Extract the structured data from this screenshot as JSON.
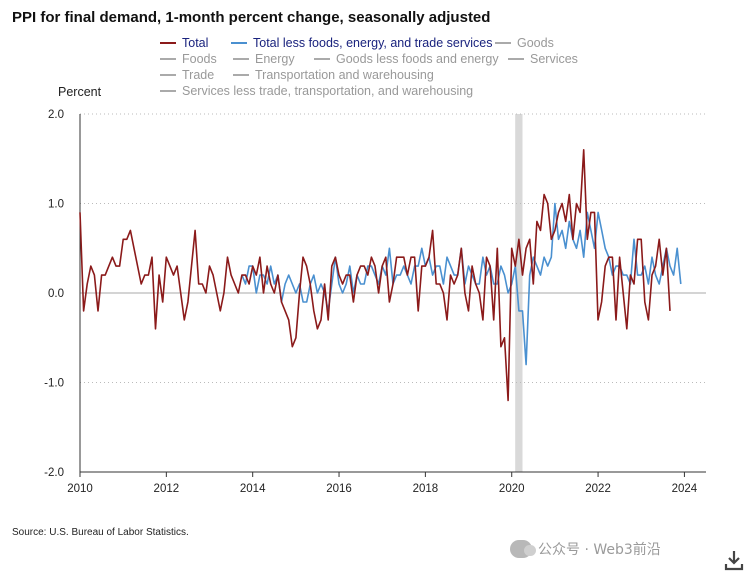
{
  "chart_data": {
    "type": "line",
    "title": "PPI for final demand, 1-month percent change, seasonally adjusted",
    "ylabel": "Percent",
    "xlabel": "",
    "ylim": [
      -2.0,
      2.0
    ],
    "xlim": [
      2010.0,
      2024.5
    ],
    "yticks": [
      "2.0",
      "1.0",
      "0.0",
      "-1.0",
      "-2.0"
    ],
    "ytick_values": [
      2.0,
      1.0,
      0.0,
      -1.0,
      -2.0
    ],
    "xticks": [
      "2010",
      "2012",
      "2014",
      "2016",
      "2018",
      "2020",
      "2022",
      "2024"
    ],
    "xtick_values": [
      2010,
      2012,
      2014,
      2016,
      2018,
      2020,
      2022,
      2024
    ],
    "recession": [
      2020.08,
      2020.25
    ],
    "legend": [
      {
        "label": "Total",
        "color": "#8b1a1a",
        "active": true
      },
      {
        "label": "Total less foods, energy, and trade services",
        "color": "#4a90d0",
        "active": true
      },
      {
        "label": "Goods",
        "color": "#aaaaaa",
        "active": false
      },
      {
        "label": "Foods",
        "color": "#aaaaaa",
        "active": false
      },
      {
        "label": "Energy",
        "color": "#aaaaaa",
        "active": false
      },
      {
        "label": "Goods less foods and energy",
        "color": "#aaaaaa",
        "active": false
      },
      {
        "label": "Services",
        "color": "#aaaaaa",
        "active": false
      },
      {
        "label": "Trade",
        "color": "#aaaaaa",
        "active": false
      },
      {
        "label": "Transportation and warehousing",
        "color": "#aaaaaa",
        "active": false
      },
      {
        "label": "Services less trade, transportation, and warehousing",
        "color": "#aaaaaa",
        "active": false
      }
    ],
    "series": [
      {
        "name": "Total",
        "color": "#8b1a1a",
        "start": 2010.0,
        "step": 0.08333,
        "values": [
          0.9,
          -0.2,
          0.1,
          0.3,
          0.2,
          -0.2,
          0.2,
          0.2,
          0.3,
          0.4,
          0.3,
          0.3,
          0.6,
          0.6,
          0.7,
          0.5,
          0.3,
          0.1,
          0.2,
          0.2,
          0.4,
          -0.4,
          0.2,
          -0.1,
          0.4,
          0.3,
          0.2,
          0.3,
          0.0,
          -0.3,
          -0.1,
          0.3,
          0.7,
          0.1,
          0.1,
          0.0,
          0.3,
          0.2,
          0.0,
          -0.2,
          0.0,
          0.4,
          0.2,
          0.1,
          0.0,
          0.2,
          0.2,
          0.1,
          0.3,
          0.2,
          0.4,
          0.0,
          0.3,
          0.1,
          0.0,
          0.2,
          -0.1,
          -0.2,
          -0.3,
          -0.6,
          -0.5,
          0.0,
          0.4,
          0.3,
          0.1,
          -0.2,
          -0.4,
          -0.3,
          0.1,
          -0.3,
          0.3,
          0.4,
          0.2,
          0.1,
          0.2,
          0.2,
          -0.1,
          0.2,
          0.3,
          0.3,
          0.2,
          0.4,
          0.3,
          0.0,
          0.3,
          0.4,
          -0.1,
          0.1,
          0.4,
          0.4,
          0.4,
          0.2,
          0.4,
          0.4,
          -0.2,
          0.3,
          0.3,
          0.4,
          0.7,
          0.1,
          0.1,
          0.0,
          -0.3,
          0.2,
          0.1,
          0.2,
          0.5,
          0.0,
          -0.2,
          0.3,
          0.1,
          0.0,
          -0.3,
          0.4,
          0.3,
          -0.3,
          0.5,
          -0.6,
          -0.5,
          -1.2,
          0.5,
          0.3,
          0.6,
          0.2,
          0.5,
          0.6,
          0.1,
          0.8,
          0.7,
          1.1,
          1.0,
          0.6,
          0.7,
          0.9,
          1.0,
          0.8,
          1.1,
          0.6,
          1.0,
          0.9,
          1.6,
          0.6,
          0.9,
          0.9,
          -0.3,
          -0.1,
          0.3,
          0.4,
          0.4,
          -0.3,
          0.4,
          0.0,
          -0.4,
          0.2,
          0.1,
          0.6,
          0.6,
          -0.1,
          -0.3,
          0.2,
          0.3,
          0.6,
          0.2,
          0.5,
          -0.2
        ],
        "description": "monthly values, Jan 2010 onward"
      },
      {
        "name": "Total less foods, energy, and trade services",
        "color": "#4a90d0",
        "start": 2013.75,
        "step": 0.08333,
        "values": [
          0.2,
          0.1,
          0.3,
          0.3,
          0.0,
          0.2,
          0.2,
          0.1,
          0.3,
          0.1,
          0.2,
          -0.1,
          0.1,
          0.2,
          0.1,
          0.0,
          0.1,
          -0.1,
          -0.1,
          0.1,
          0.2,
          0.0,
          0.1,
          0.0,
          -0.2,
          0.1,
          0.4,
          0.1,
          0.0,
          0.1,
          0.3,
          0.0,
          0.2,
          0.1,
          0.1,
          0.3,
          0.3,
          0.2,
          0.1,
          0.3,
          0.2,
          0.5,
          0.1,
          0.2,
          0.2,
          0.3,
          0.2,
          0.1,
          0.3,
          0.3,
          0.5,
          0.3,
          0.4,
          0.2,
          0.3,
          0.3,
          0.1,
          0.4,
          0.3,
          0.2,
          0.2,
          0.5,
          0.1,
          0.3,
          0.2,
          0.1,
          0.1,
          0.4,
          0.2,
          0.3,
          0.1,
          0.1,
          0.3,
          0.2,
          0.0,
          0.1,
          0.3,
          -0.2,
          -0.2,
          -0.8,
          0.2,
          0.4,
          0.3,
          0.2,
          0.4,
          0.3,
          0.4,
          1.0,
          0.6,
          0.7,
          0.5,
          0.8,
          0.6,
          0.5,
          0.7,
          0.4,
          0.9,
          0.7,
          0.5,
          0.9,
          0.7,
          0.5,
          0.4,
          0.2,
          0.3,
          0.3,
          0.2,
          0.2,
          0.1,
          0.6,
          0.2,
          0.2,
          0.3,
          0.1,
          0.4,
          0.2,
          0.1,
          0.3,
          0.5,
          0.3,
          0.2,
          0.5,
          0.1
        ]
      }
    ]
  },
  "source": "Source: U.S. Bureau of Labor Statistics.",
  "watermark": "公众号 · Web3前沿",
  "icons": {
    "download": "download-icon",
    "watermark": "wechat-icon"
  }
}
